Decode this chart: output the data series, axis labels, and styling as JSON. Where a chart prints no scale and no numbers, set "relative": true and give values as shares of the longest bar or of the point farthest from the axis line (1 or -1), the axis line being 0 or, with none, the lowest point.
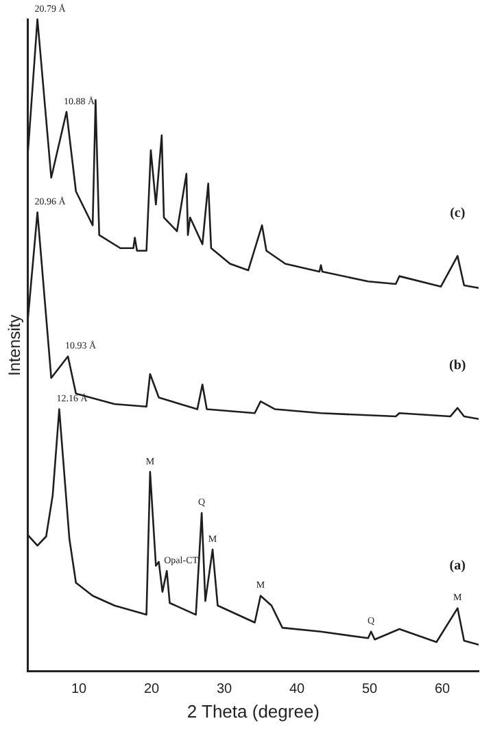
{
  "chart_data": {
    "type": "line",
    "relative": true,
    "xlabel": "2 Theta (degree)",
    "ylabel": "Intensity",
    "xlim": [
      3,
      65
    ],
    "xticks": [
      10,
      20,
      30,
      40,
      50,
      60
    ],
    "grid": false,
    "legend": false,
    "marker": "none",
    "line_style": "solid",
    "series": [
      {
        "name": "(c)",
        "color": "#1e1e1e",
        "x": [
          3.0,
          4.3,
          6.2,
          8.3,
          9.6,
          11.9,
          12.3,
          12.8,
          15.7,
          17.5,
          17.7,
          18.0,
          19.3,
          19.9,
          20.6,
          21.4,
          21.7,
          23.5,
          24.8,
          25.0,
          25.3,
          27.0,
          27.8,
          28.2,
          30.8,
          33.3,
          35.2,
          35.8,
          38.4,
          43.1,
          43.3,
          43.5,
          49.8,
          53.6,
          54.1,
          59.8,
          62.1,
          63.0,
          65.0
        ],
        "values": [
          0.797,
          1.0,
          0.757,
          0.858,
          0.736,
          0.684,
          0.876,
          0.669,
          0.649,
          0.649,
          0.665,
          0.645,
          0.645,
          0.799,
          0.716,
          0.822,
          0.696,
          0.675,
          0.763,
          0.669,
          0.696,
          0.655,
          0.748,
          0.649,
          0.625,
          0.615,
          0.684,
          0.645,
          0.625,
          0.613,
          0.623,
          0.613,
          0.598,
          0.594,
          0.606,
          0.59,
          0.637,
          0.592,
          0.588
        ]
      },
      {
        "name": "(b)",
        "color": "#1e1e1e",
        "x": [
          3.0,
          4.3,
          6.2,
          8.5,
          9.6,
          14.9,
          19.3,
          19.8,
          21.0,
          26.3,
          27.0,
          27.6,
          34.2,
          35.0,
          37.0,
          43.3,
          53.6,
          54.1,
          61.1,
          62.1,
          63.0,
          65.0
        ],
        "values": [
          0.542,
          0.704,
          0.45,
          0.483,
          0.426,
          0.41,
          0.406,
          0.456,
          0.42,
          0.402,
          0.44,
          0.402,
          0.396,
          0.414,
          0.402,
          0.396,
          0.391,
          0.396,
          0.391,
          0.404,
          0.391,
          0.387
        ]
      },
      {
        "name": "(a)",
        "color": "#1e1e1e",
        "x": [
          3.0,
          4.3,
          5.5,
          6.4,
          7.3,
          8.7,
          9.6,
          11.9,
          14.9,
          19.3,
          19.8,
          20.6,
          21.0,
          21.5,
          22.1,
          22.5,
          26.1,
          26.9,
          27.4,
          28.4,
          29.1,
          34.2,
          35.0,
          36.5,
          38.0,
          43.3,
          49.8,
          50.2,
          50.7,
          54.1,
          59.2,
          62.1,
          63.0,
          65.0
        ],
        "values": [
          0.209,
          0.193,
          0.207,
          0.27,
          0.402,
          0.203,
          0.136,
          0.116,
          0.101,
          0.087,
          0.306,
          0.162,
          0.168,
          0.122,
          0.154,
          0.105,
          0.087,
          0.243,
          0.108,
          0.187,
          0.101,
          0.075,
          0.116,
          0.101,
          0.067,
          0.061,
          0.051,
          0.061,
          0.049,
          0.065,
          0.045,
          0.097,
          0.047,
          0.041
        ]
      }
    ],
    "annotations": [
      {
        "text": "20.79 Å",
        "x": 4.3,
        "y": 1.0
      },
      {
        "text": "10.88 Å",
        "x": 8.3,
        "y": 0.858
      },
      {
        "text": "20.96 Å",
        "x": 4.3,
        "y": 0.704
      },
      {
        "text": "10.93 Å",
        "x": 8.5,
        "y": 0.483
      },
      {
        "text": "12.16 Å",
        "x": 7.3,
        "y": 0.402
      },
      {
        "text": "M",
        "x": 19.8,
        "y": 0.306
      },
      {
        "text": "Opal-CT",
        "x": 22.1,
        "y": 0.154
      },
      {
        "text": "Q",
        "x": 26.9,
        "y": 0.243
      },
      {
        "text": "M",
        "x": 28.4,
        "y": 0.187
      },
      {
        "text": "M",
        "x": 35.0,
        "y": 0.116
      },
      {
        "text": "Q",
        "x": 50.2,
        "y": 0.061
      },
      {
        "text": "M",
        "x": 62.1,
        "y": 0.097
      }
    ]
  }
}
